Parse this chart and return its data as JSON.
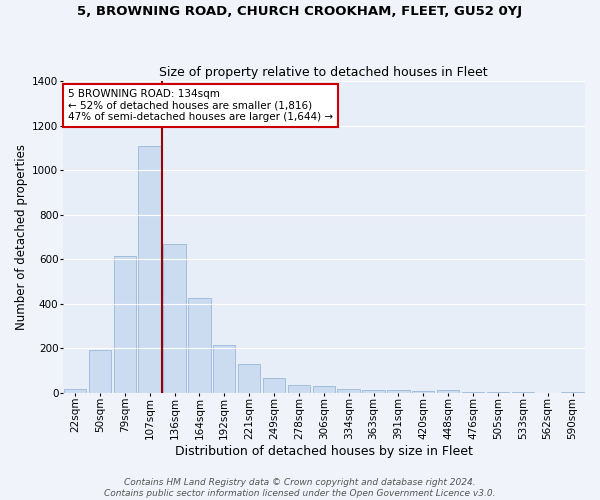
{
  "title": "5, BROWNING ROAD, CHURCH CROOKHAM, FLEET, GU52 0YJ",
  "subtitle": "Size of property relative to detached houses in Fleet",
  "xlabel": "Distribution of detached houses by size in Fleet",
  "ylabel": "Number of detached properties",
  "bar_color": "#ccdcf0",
  "bar_edgecolor": "#9ab8d8",
  "background_color": "#e8eef8",
  "grid_color": "#ffffff",
  "fig_facecolor": "#f0f4fa",
  "categories": [
    "22sqm",
    "50sqm",
    "79sqm",
    "107sqm",
    "136sqm",
    "164sqm",
    "192sqm",
    "221sqm",
    "249sqm",
    "278sqm",
    "306sqm",
    "334sqm",
    "363sqm",
    "391sqm",
    "420sqm",
    "448sqm",
    "476sqm",
    "505sqm",
    "533sqm",
    "562sqm",
    "590sqm"
  ],
  "values": [
    15,
    193,
    615,
    1110,
    670,
    425,
    215,
    128,
    68,
    33,
    30,
    17,
    12,
    10,
    8,
    13,
    2,
    1,
    1,
    0,
    2
  ],
  "ylim": [
    0,
    1400
  ],
  "yticks": [
    0,
    200,
    400,
    600,
    800,
    1000,
    1200,
    1400
  ],
  "vline_x_index": 3.5,
  "vline_color": "#990000",
  "property_line_label": "5 BROWNING ROAD: 134sqm",
  "annotation_line1": "← 52% of detached houses are smaller (1,816)",
  "annotation_line2": "47% of semi-detached houses are larger (1,644) →",
  "annotation_box_color": "#ffffff",
  "annotation_box_edgecolor": "#cc0000",
  "footer_line1": "Contains HM Land Registry data © Crown copyright and database right 2024.",
  "footer_line2": "Contains public sector information licensed under the Open Government Licence v3.0.",
  "title_fontsize": 9.5,
  "subtitle_fontsize": 9,
  "axis_label_fontsize": 8.5,
  "tick_fontsize": 7.5,
  "annotation_fontsize": 7.5,
  "footer_fontsize": 6.5
}
